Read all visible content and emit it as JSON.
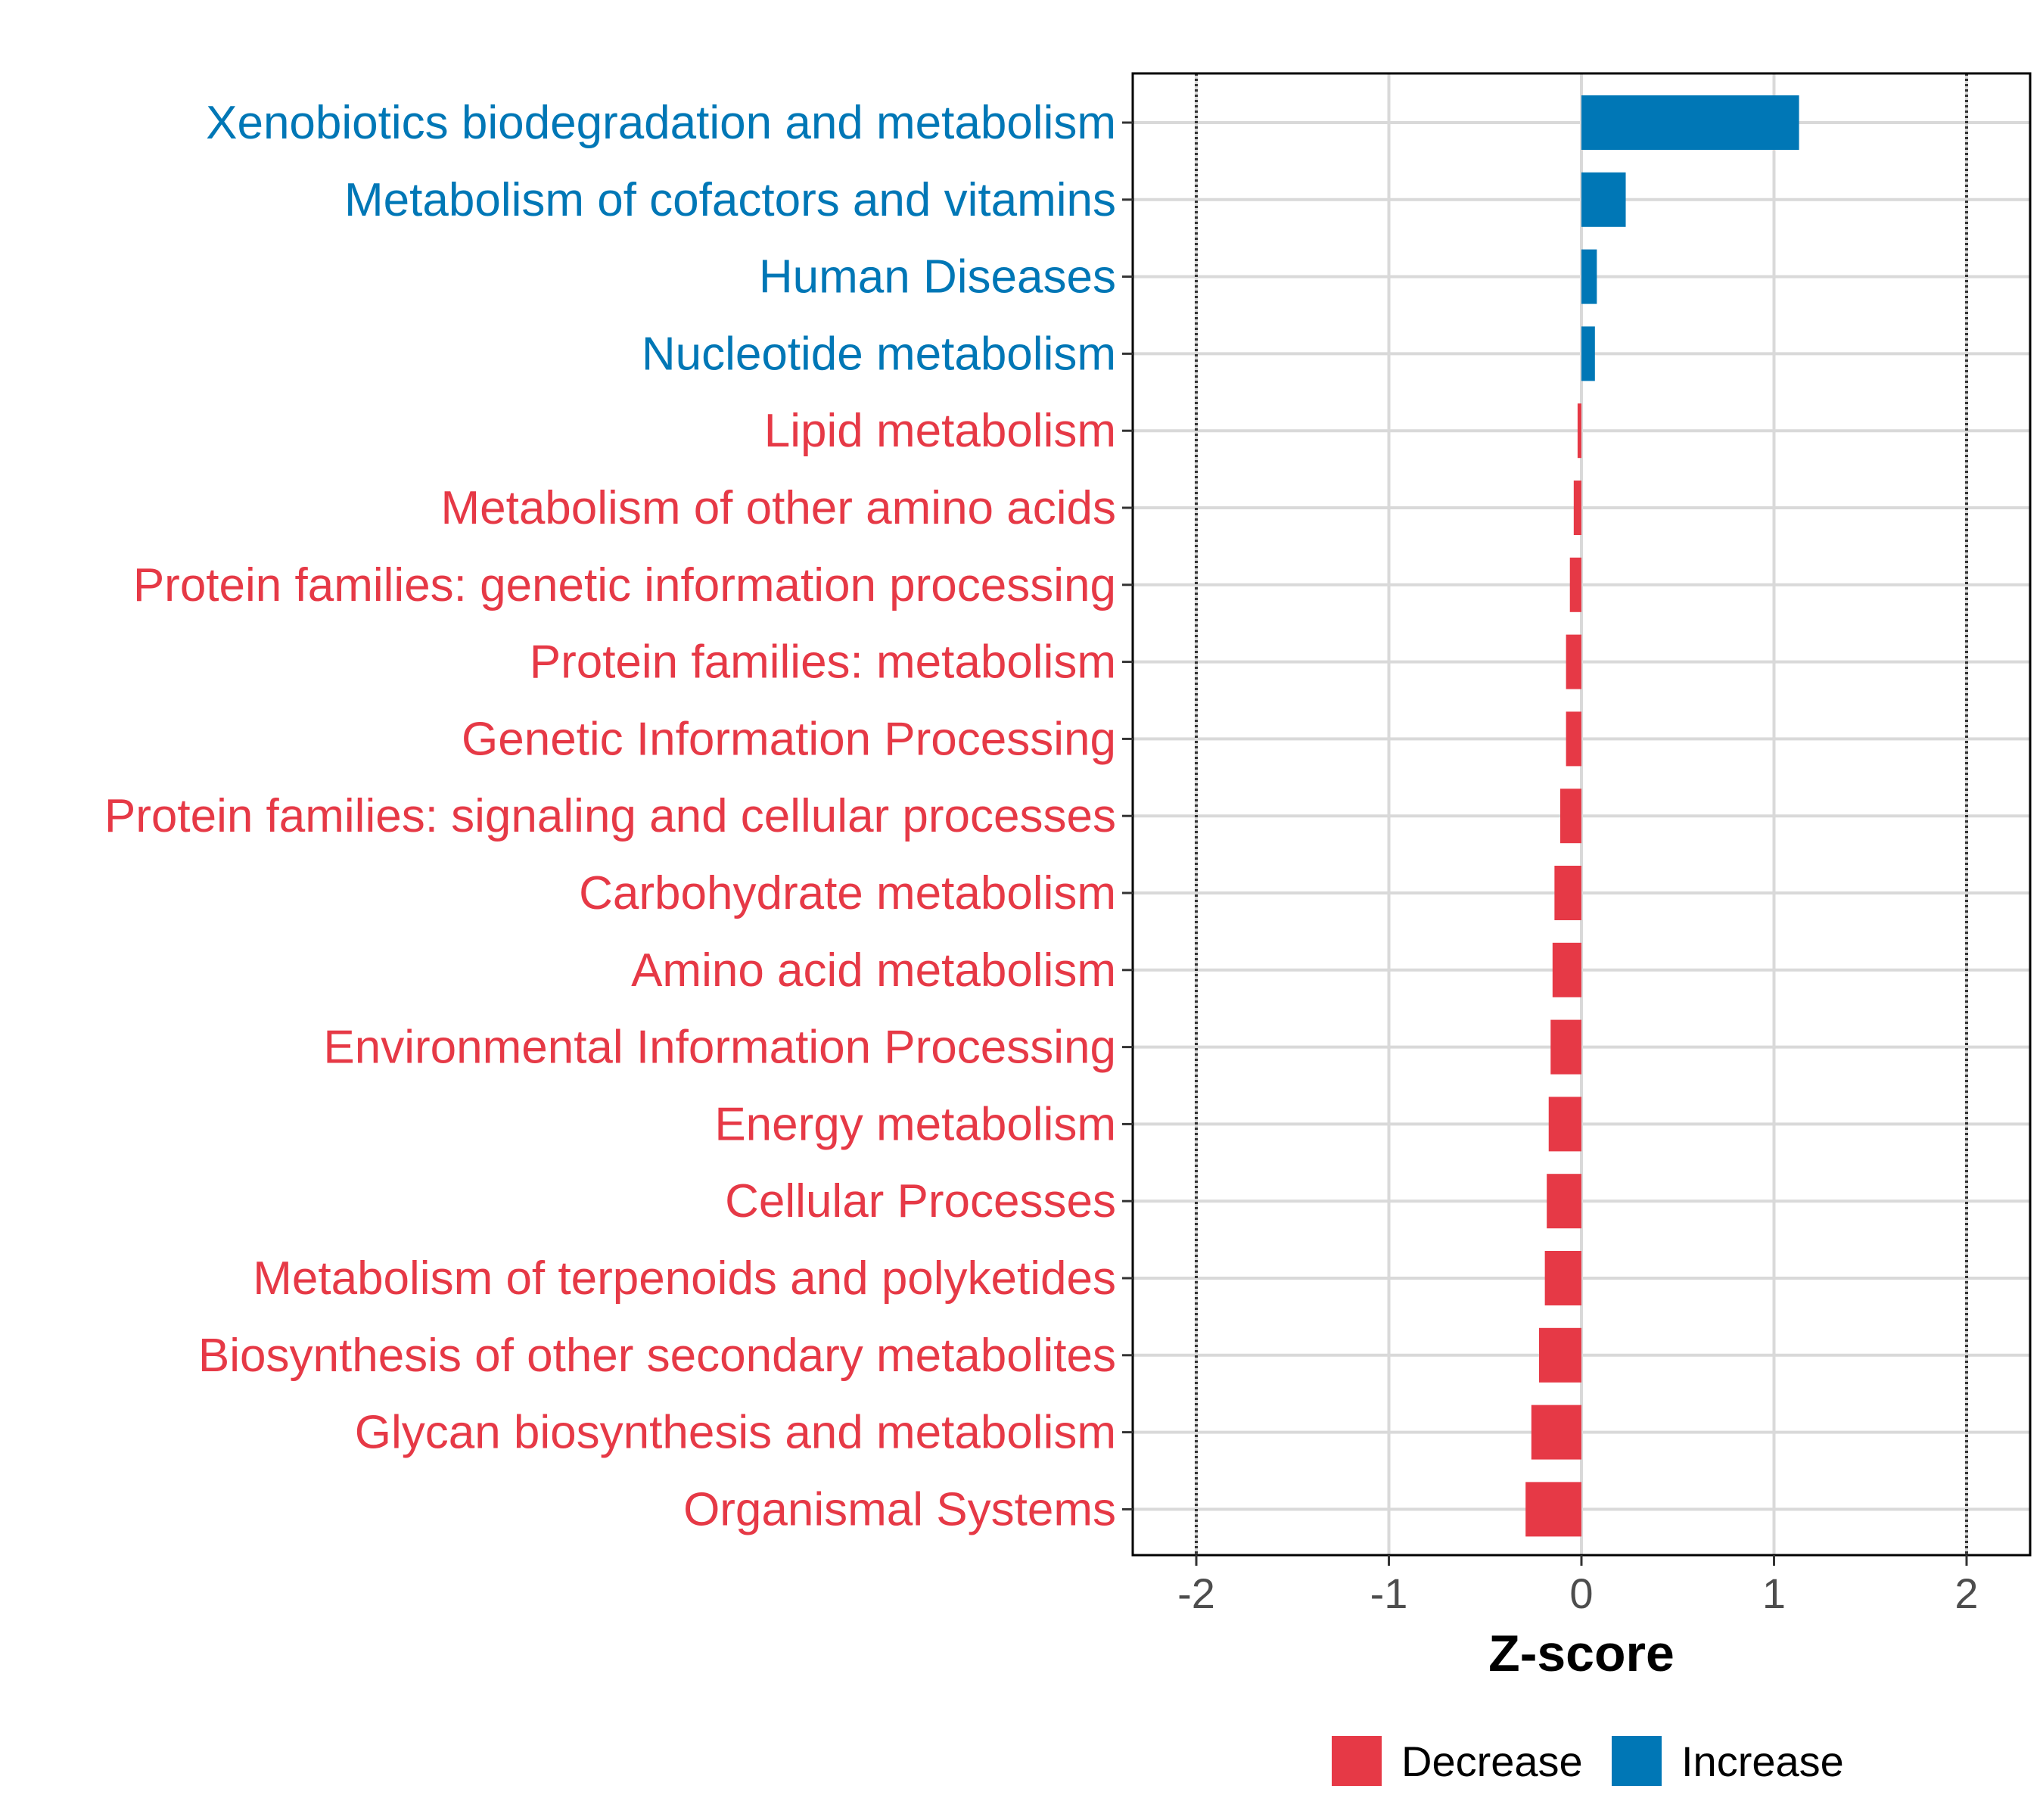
{
  "chart_data": {
    "type": "bar",
    "orientation": "horizontal",
    "categories": [
      "Xenobiotics biodegradation and metabolism",
      "Metabolism of cofactors and vitamins",
      "Human Diseases",
      "Nucleotide metabolism",
      "Lipid metabolism",
      "Metabolism of other amino acids",
      "Protein families: genetic information processing",
      "Protein families: metabolism",
      "Genetic Information Processing",
      "Protein families: signaling and cellular processes",
      "Carbohydrate metabolism",
      "Amino acid metabolism",
      "Environmental Information Processing",
      "Energy metabolism",
      "Cellular Processes",
      "Metabolism of terpenoids and polyketides",
      "Biosynthesis of other secondary metabolites",
      "Glycan biosynthesis and metabolism",
      "Organismal Systems"
    ],
    "values": [
      1.13,
      0.23,
      0.08,
      0.07,
      -0.02,
      -0.04,
      -0.06,
      -0.08,
      -0.08,
      -0.11,
      -0.14,
      -0.15,
      -0.16,
      -0.17,
      -0.18,
      -0.19,
      -0.22,
      -0.26,
      -0.29
    ],
    "groups": [
      "Increase",
      "Increase",
      "Increase",
      "Increase",
      "Decrease",
      "Decrease",
      "Decrease",
      "Decrease",
      "Decrease",
      "Decrease",
      "Decrease",
      "Decrease",
      "Decrease",
      "Decrease",
      "Decrease",
      "Decrease",
      "Decrease",
      "Decrease",
      "Decrease"
    ],
    "xlabel": "Z-score",
    "ylabel": "",
    "xlim": [
      -2.33,
      2.33
    ],
    "xticks": [
      -2,
      -1,
      0,
      1,
      2
    ],
    "xtick_labels": [
      "-2",
      "-1",
      "0",
      "1",
      "2"
    ],
    "reference_lines": [
      -2,
      2
    ],
    "grid": true,
    "legend": {
      "position": "bottom",
      "items": [
        {
          "label": "Decrease",
          "color": "#e63946"
        },
        {
          "label": "Increase",
          "color": "#0077b6"
        }
      ]
    },
    "colors": {
      "Decrease": "#e63946",
      "Increase": "#0077b6"
    }
  }
}
